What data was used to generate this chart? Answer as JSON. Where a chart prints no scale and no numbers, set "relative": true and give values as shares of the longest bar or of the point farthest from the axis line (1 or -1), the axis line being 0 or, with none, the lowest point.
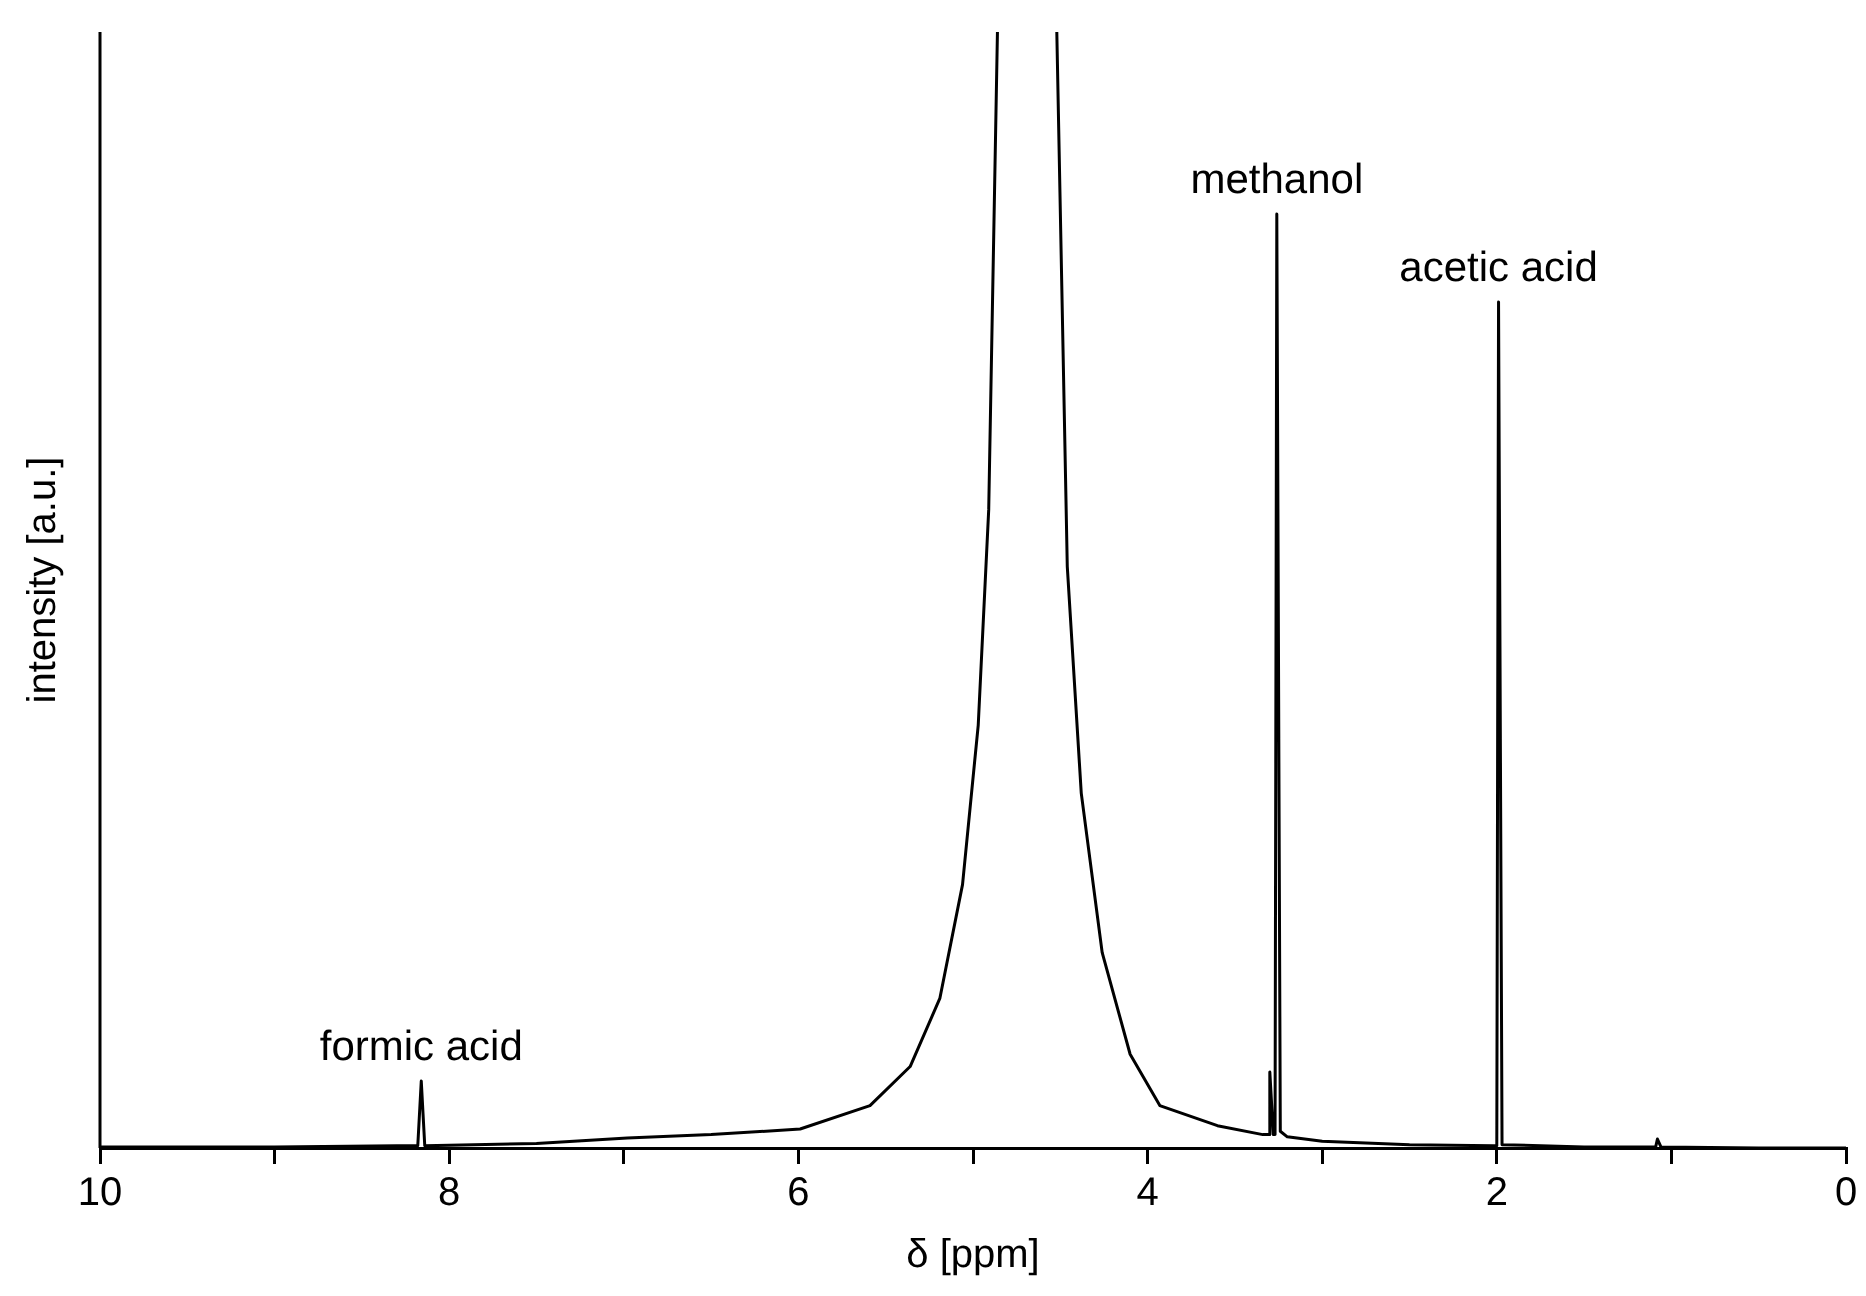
{
  "chart_data": {
    "type": "line",
    "relative": true,
    "xlabel": "δ [ppm]",
    "ylabel": "intensity [a.u.]",
    "color": "#000000",
    "marker": "none",
    "line_style": "solid",
    "grid": false,
    "legend": false,
    "xlim": [
      10,
      0
    ],
    "xticks": [
      10,
      {
        "value": 9,
        "label": null
      },
      8,
      {
        "value": 7,
        "label": null
      },
      6,
      {
        "value": 5,
        "label": null
      },
      4,
      {
        "value": 3,
        "label": null
      },
      2,
      {
        "value": 1,
        "label": null
      },
      0
    ],
    "x": [
      10,
      9,
      8.3,
      8.18,
      8.16,
      8.14,
      7.5,
      6.98,
      6.5,
      5.99,
      5.59,
      5.36,
      5.19,
      5.06,
      4.97,
      4.91,
      4.86,
      4.7,
      4.52,
      4.46,
      4.38,
      4.26,
      4.1,
      3.93,
      3.6,
      3.34,
      3.31,
      3.3,
      3.28,
      3.27,
      3.26,
      3.24,
      3.2,
      3.0,
      2.5,
      2.02,
      2.0,
      1.99,
      1.97,
      1.5,
      1.09,
      1.08,
      1.06,
      0.5,
      0
    ],
    "values": [
      0.001,
      0.001,
      0.002,
      0.002,
      0.06,
      0.002,
      0.004,
      0.009,
      0.012,
      0.017,
      0.038,
      0.073,
      0.134,
      0.236,
      0.379,
      0.572,
      1,
      null,
      1,
      0.521,
      0.318,
      0.175,
      0.084,
      0.038,
      0.02,
      0.012,
      0.012,
      0.068,
      0.012,
      0.012,
      0.837,
      0.015,
      0.01,
      0.006,
      0.003,
      0.002,
      0.002,
      0.758,
      0.003,
      0.001,
      0.001,
      0.008,
      0.001,
      0,
      0
    ],
    "annotations": [
      {
        "text": "formic acid",
        "x": 8.16,
        "y": 0.06
      },
      {
        "text": "methanol",
        "x": 3.26,
        "y": 0.837
      },
      {
        "text": "acetic acid",
        "x": 1.99,
        "y": 0.758
      }
    ]
  }
}
